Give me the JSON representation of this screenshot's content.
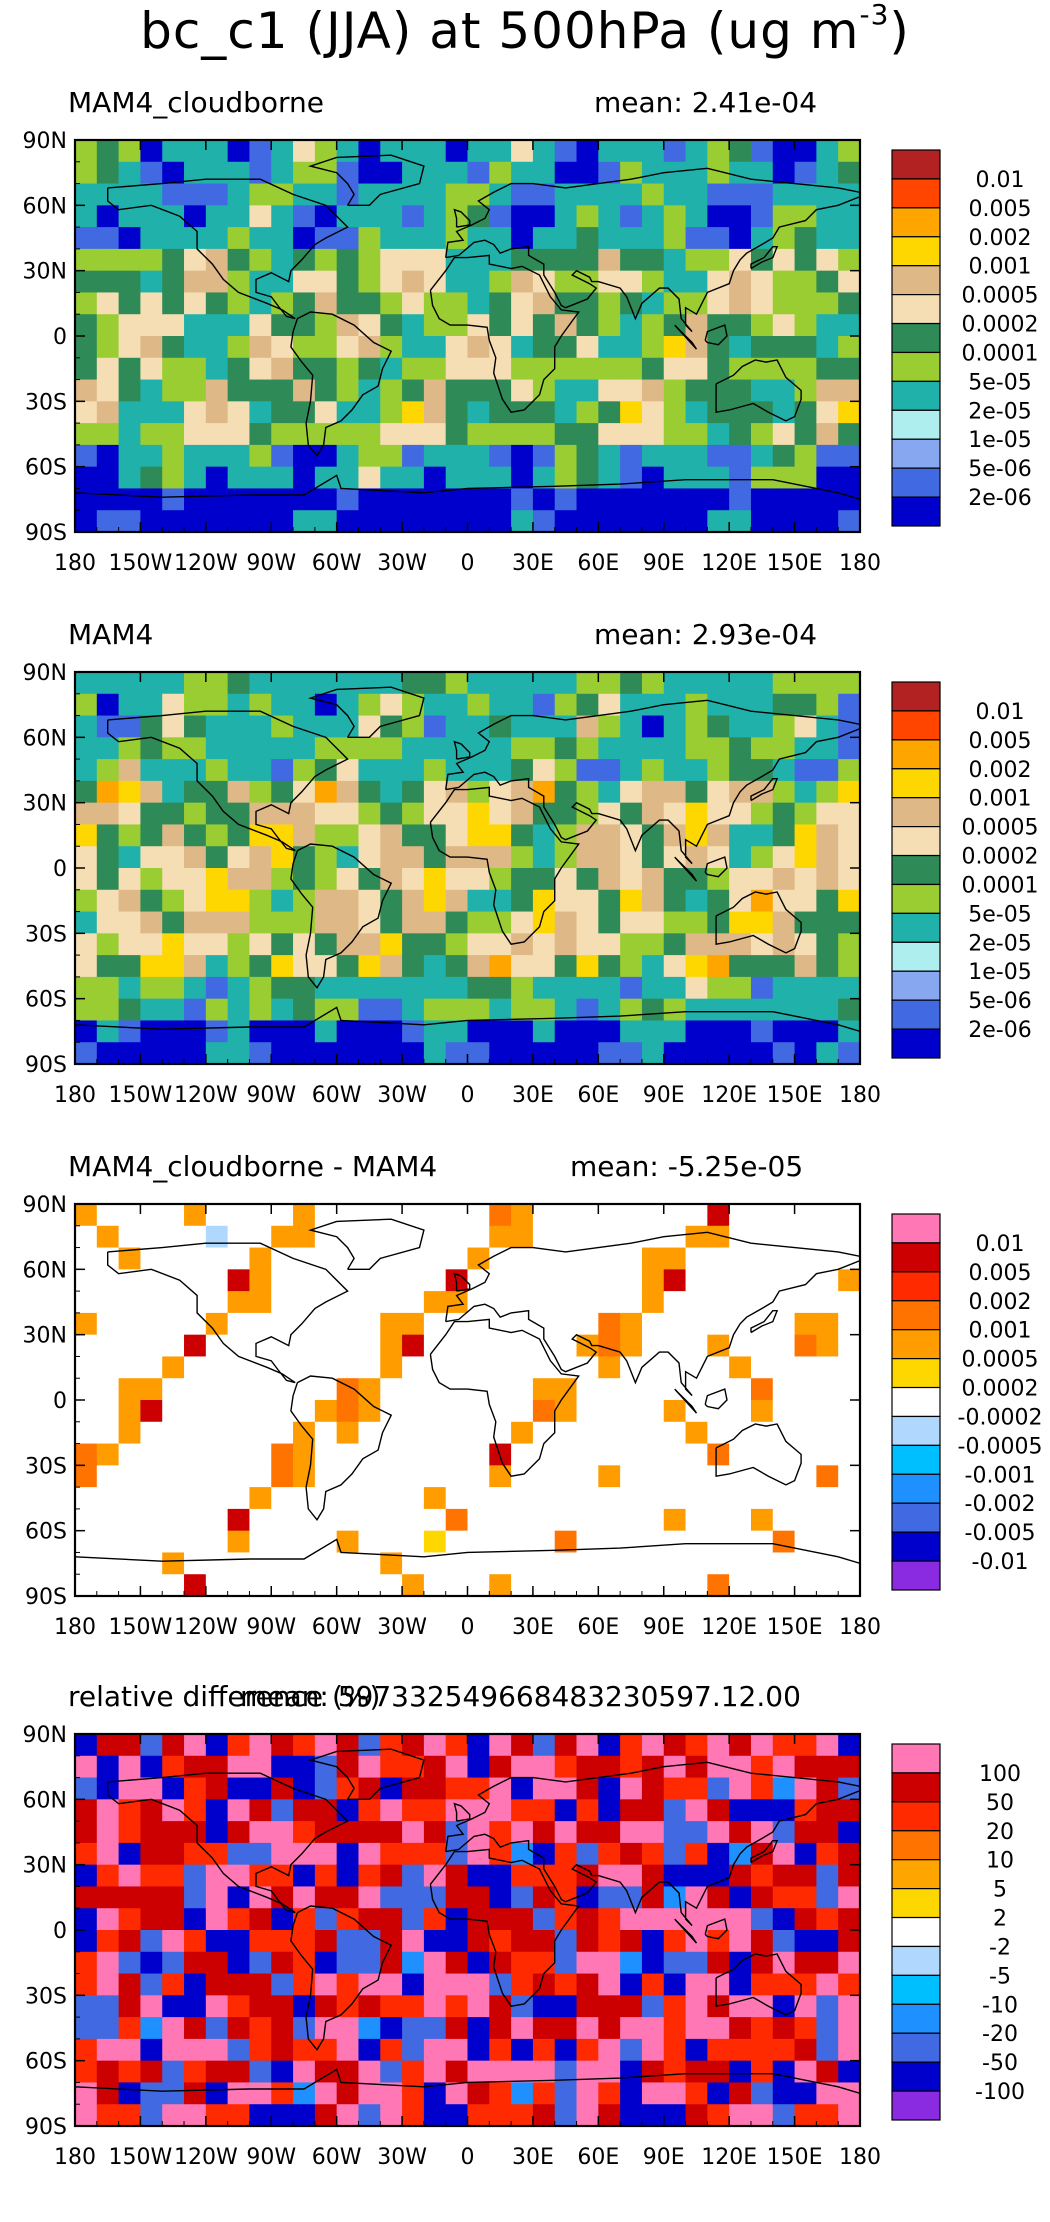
{
  "figure": {
    "title_main": "bc_c1 (JJA) at 500hPa (ug m",
    "title_sup": "-3",
    "title_close": ")"
  },
  "axes": {
    "lon_ticks": [
      "180",
      "150W",
      "120W",
      "90W",
      "60W",
      "30W",
      "0",
      "30E",
      "60E",
      "90E",
      "120E",
      "150E",
      "180"
    ],
    "lat_ticks": [
      "90N",
      "60N",
      "30N",
      "0",
      "30S",
      "60S",
      "90S"
    ]
  },
  "panels": [
    {
      "title": "MAM4_cloudborne",
      "mean": "mean: 2.41e-04",
      "colorbar": {
        "labels": [
          "0.01",
          "0.005",
          "0.002",
          "0.001",
          "0.0005",
          "0.0002",
          "0.0001",
          "5e-05",
          "2e-05",
          "1e-05",
          "5e-06",
          "2e-06"
        ],
        "colors": [
          "#b22222",
          "#ff4500",
          "#ffa500",
          "#ffd700",
          "#deb887",
          "#f5deb3",
          "#2e8b57",
          "#9acd32",
          "#20b2aa",
          "#afeeee",
          "#87a8f0",
          "#4169e1",
          "#0000cd"
        ]
      }
    },
    {
      "title": "MAM4",
      "mean": "mean: 2.93e-04",
      "colorbar": {
        "labels": [
          "0.01",
          "0.005",
          "0.002",
          "0.001",
          "0.0005",
          "0.0002",
          "0.0001",
          "5e-05",
          "2e-05",
          "1e-05",
          "5e-06",
          "2e-06"
        ],
        "colors": [
          "#b22222",
          "#ff4500",
          "#ffa500",
          "#ffd700",
          "#deb887",
          "#f5deb3",
          "#2e8b57",
          "#9acd32",
          "#20b2aa",
          "#afeeee",
          "#87a8f0",
          "#4169e1",
          "#0000cd"
        ]
      }
    },
    {
      "title": "MAM4_cloudborne - MAM4",
      "mean": "mean: -5.25e-05",
      "colorbar": {
        "labels": [
          "0.01",
          "0.005",
          "0.002",
          "0.001",
          "0.0005",
          "0.0002",
          "-0.0002",
          "-0.0005",
          "-0.001",
          "-0.002",
          "-0.005",
          "-0.01"
        ],
        "colors": [
          "#ff77b4",
          "#cc0000",
          "#ff2a00",
          "#ff7400",
          "#ff9c00",
          "#ffd700",
          "#ffffff",
          "#b0d8ff",
          "#00bfff",
          "#1e90ff",
          "#4169e1",
          "#0000cd",
          "#8a2be2"
        ]
      }
    },
    {
      "title": "relative difference (%)",
      "mean": "mean: 597332549668483230597.12.00",
      "colorbar": {
        "labels": [
          "100",
          "50",
          "20",
          "10",
          "5",
          "2",
          "-2",
          "-5",
          "-10",
          "-20",
          "-50",
          "-100"
        ],
        "colors": [
          "#ff77b4",
          "#cc0000",
          "#ff2a00",
          "#ff7400",
          "#ffa500",
          "#ffd700",
          "#ffffff",
          "#b0d8ff",
          "#00bfff",
          "#1e90ff",
          "#4169e1",
          "#0000cd",
          "#8a2be2"
        ]
      }
    }
  ]
}
